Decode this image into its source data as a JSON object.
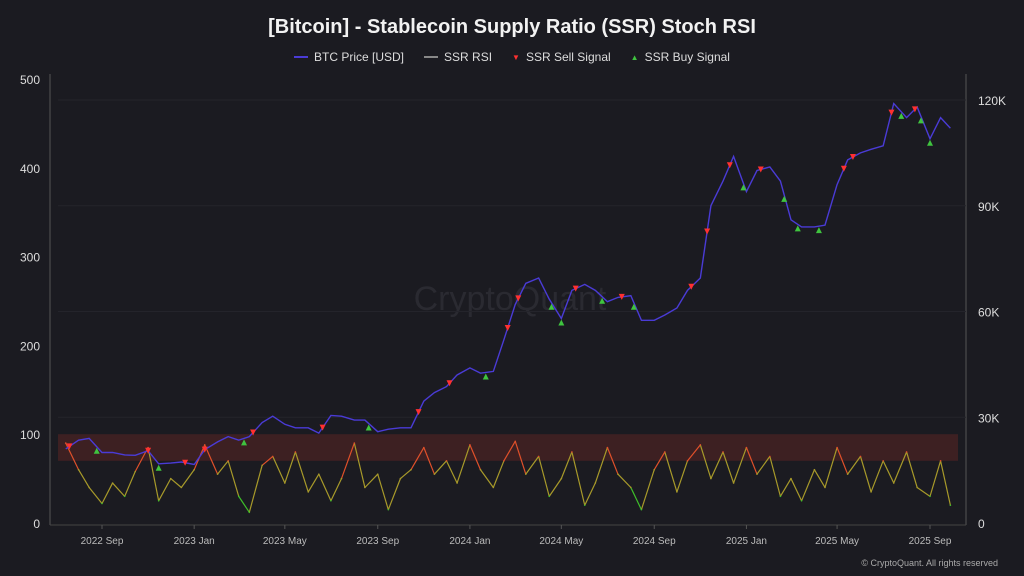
{
  "chart_data": {
    "type": "line",
    "title": "[Bitcoin] - Stablecoin Supply Ratio (SSR) Stoch RSI",
    "legend": {
      "placement": "top",
      "entries": [
        "BTC Price [USD]",
        "SSR RSI",
        "SSR Sell Signal",
        "SSR Buy Signal"
      ]
    },
    "left_axis": {
      "ylim": [
        0,
        500
      ],
      "ticks": [
        "0",
        "100",
        "200",
        "300",
        "400",
        "500"
      ]
    },
    "right_axis": {
      "ylim": [
        0,
        120000
      ],
      "ticks": [
        "0",
        "30K",
        "60K",
        "90K",
        "120K"
      ]
    },
    "x_ticks": [
      "2022 Sep",
      "2023 Jan",
      "2023 May",
      "2023 Sep",
      "2024 Jan",
      "2024 May",
      "2024 Sep",
      "2025 Jan",
      "2025 May",
      "2025 Sep"
    ],
    "x_tick_dates": [
      "2022-09-01",
      "2023-01-01",
      "2023-05-01",
      "2023-09-01",
      "2024-01-01",
      "2024-05-01",
      "2024-09-01",
      "2025-01-01",
      "2025-05-01",
      "2025-09-01"
    ],
    "overbought_band": [
      70,
      100
    ],
    "colors": {
      "btc": "#4a3bd6",
      "sell": "#ff3030",
      "buy": "#3fc43f",
      "band": "#5a2424",
      "rsi_high": "#e0502a",
      "rsi_mid": "#a89a2a",
      "rsi_low": "#3fbf2a"
    },
    "dates": [
      "2022-07-15",
      "2022-08-01",
      "2022-08-15",
      "2022-09-01",
      "2022-09-15",
      "2022-10-01",
      "2022-10-15",
      "2022-11-01",
      "2022-11-15",
      "2022-12-01",
      "2022-12-15",
      "2023-01-01",
      "2023-01-15",
      "2023-02-01",
      "2023-02-15",
      "2023-03-01",
      "2023-03-15",
      "2023-04-01",
      "2023-04-15",
      "2023-05-01",
      "2023-05-15",
      "2023-06-01",
      "2023-06-15",
      "2023-07-01",
      "2023-07-15",
      "2023-08-01",
      "2023-08-15",
      "2023-09-01",
      "2023-09-15",
      "2023-10-01",
      "2023-10-15",
      "2023-11-01",
      "2023-11-15",
      "2023-12-01",
      "2023-12-15",
      "2024-01-01",
      "2024-01-15",
      "2024-02-01",
      "2024-02-15",
      "2024-03-01",
      "2024-03-15",
      "2024-04-01",
      "2024-04-15",
      "2024-05-01",
      "2024-05-15",
      "2024-06-01",
      "2024-06-15",
      "2024-07-01",
      "2024-07-15",
      "2024-08-01",
      "2024-08-15",
      "2024-09-01",
      "2024-09-15",
      "2024-10-01",
      "2024-10-15",
      "2024-11-01",
      "2024-11-15",
      "2024-12-01",
      "2024-12-15",
      "2025-01-01",
      "2025-01-15",
      "2025-02-01",
      "2025-02-15",
      "2025-03-01",
      "2025-03-15",
      "2025-04-01",
      "2025-04-15",
      "2025-05-01",
      "2025-05-15",
      "2025-06-01",
      "2025-06-15",
      "2025-07-01",
      "2025-07-15",
      "2025-08-01",
      "2025-08-15",
      "2025-09-01",
      "2025-09-15",
      "2025-09-28"
    ],
    "series": [
      {
        "name": "BTC Price [USD]",
        "axis": "right",
        "values": [
          21000,
          23500,
          24000,
          20000,
          20000,
          19300,
          19200,
          20500,
          16800,
          17000,
          17300,
          16600,
          20800,
          23000,
          24500,
          23500,
          24500,
          28500,
          30300,
          28000,
          27000,
          27000,
          25500,
          30500,
          30300,
          29200,
          29200,
          25900,
          26600,
          27000,
          27000,
          34600,
          37000,
          38700,
          42000,
          44000,
          42500,
          43000,
          52000,
          62000,
          68000,
          69500,
          63500,
          58000,
          66000,
          67700,
          66000,
          62800,
          64000,
          64500,
          57500,
          57500,
          59000,
          61000,
          66000,
          69500,
          90000,
          97000,
          104000,
          94000,
          100000,
          101000,
          97000,
          86000,
          84000,
          84000,
          84500,
          96000,
          103000,
          105000,
          106000,
          107000,
          119000,
          115000,
          118000,
          109000,
          115000,
          112000
        ]
      },
      {
        "name": "SSR RSI",
        "axis": "left",
        "values": [
          90,
          60,
          40,
          22,
          45,
          30,
          58,
          85,
          25,
          50,
          40,
          60,
          88,
          55,
          70,
          30,
          12,
          65,
          75,
          45,
          80,
          35,
          55,
          25,
          50,
          90,
          40,
          55,
          15,
          50,
          60,
          85,
          55,
          70,
          45,
          88,
          60,
          40,
          70,
          92,
          55,
          75,
          30,
          50,
          80,
          20,
          45,
          85,
          55,
          40,
          15,
          60,
          80,
          35,
          70,
          88,
          50,
          80,
          45,
          85,
          55,
          75,
          30,
          50,
          25,
          60,
          40,
          85,
          55,
          75,
          35,
          70,
          45,
          80,
          40,
          30,
          70,
          20
        ]
      }
    ],
    "sell_signals": [
      "2022-07-20",
      "2022-11-01",
      "2022-12-20",
      "2023-01-15",
      "2023-03-20",
      "2023-06-20",
      "2023-10-25",
      "2023-12-05",
      "2024-02-20",
      "2024-03-05",
      "2024-05-20",
      "2024-07-20",
      "2024-10-20",
      "2024-11-10",
      "2024-12-10",
      "2025-01-20",
      "2025-05-10",
      "2025-05-22",
      "2025-07-12",
      "2025-08-12"
    ],
    "buy_signals": [
      "2022-08-25",
      "2022-11-15",
      "2023-03-08",
      "2023-08-20",
      "2024-01-22",
      "2024-04-18",
      "2024-05-01",
      "2024-06-24",
      "2024-08-05",
      "2024-12-28",
      "2025-02-20",
      "2025-03-10",
      "2025-04-07",
      "2025-07-25",
      "2025-08-20",
      "2025-09-01"
    ],
    "watermark": "CryptoQuant"
  },
  "footer": "© CryptoQuant. All rights reserved"
}
